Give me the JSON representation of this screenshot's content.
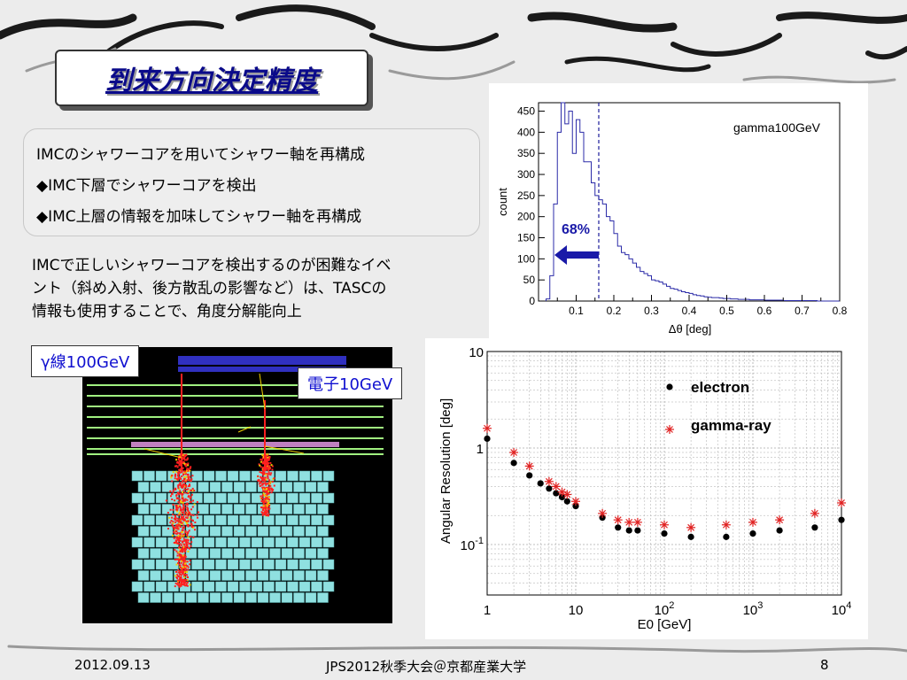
{
  "slide": {
    "title": "到来方向決定精度",
    "bullets": [
      "IMCのシャワーコアを用いてシャワー軸を再構成",
      "◆IMC下層でシャワーコアを検出",
      "◆IMC上層の情報を加味してシャワー軸を再構成"
    ],
    "paragraph": [
      "IMCで正しいシャワーコアを検出するのが困難なイベ",
      "ント（斜め入射、後方散乱の影響など）は、TASCの",
      "情報も使用することで、角度分解能向上"
    ],
    "labels": {
      "gamma": "γ線100GeV",
      "electron": "電子10GeV"
    },
    "footer": {
      "date": "2012.09.13",
      "conference": "JPS2012秋季大会＠京都産業大学",
      "page": "8"
    }
  },
  "chart_data": [
    {
      "type": "bar",
      "title": "gamma100GeV",
      "xlabel": "Δθ [deg]",
      "ylabel": "count",
      "xlim": [
        0,
        0.8
      ],
      "ylim": [
        0,
        470
      ],
      "x_ticks": [
        "0.1",
        "0.2",
        "0.3",
        "0.4",
        "0.5",
        "0.6",
        "0.7",
        "0.8"
      ],
      "x_tick_values": [
        0.1,
        0.2,
        0.3,
        0.4,
        0.5,
        0.6,
        0.7,
        0.8
      ],
      "y_ticks": [
        "0",
        "50",
        "100",
        "150",
        "200",
        "250",
        "300",
        "350",
        "400",
        "450"
      ],
      "y_tick_values": [
        0,
        50,
        100,
        150,
        200,
        250,
        300,
        350,
        400,
        450
      ],
      "bin_width": 0.01,
      "bin_start": 0.02,
      "values": [
        5,
        60,
        230,
        400,
        470,
        420,
        450,
        350,
        430,
        400,
        330,
        330,
        280,
        250,
        240,
        230,
        200,
        190,
        160,
        130,
        115,
        110,
        100,
        90,
        80,
        70,
        65,
        60,
        50,
        48,
        45,
        40,
        35,
        30,
        28,
        25,
        22,
        20,
        18,
        15,
        13,
        12,
        10,
        9,
        8,
        8,
        7,
        6,
        6,
        5,
        5,
        4,
        4,
        4,
        3,
        3,
        3,
        3,
        2,
        2,
        2,
        2,
        2,
        1,
        1,
        1,
        1,
        1,
        1,
        1,
        1,
        1,
        0,
        0,
        0,
        0,
        0,
        0
      ],
      "cut_line_x": 0.16,
      "annotation": "68%"
    },
    {
      "type": "scatter",
      "xlabel": "E0 [GeV]",
      "ylabel": "Angular Resolution [deg]",
      "x_scale": "log",
      "y_scale": "log",
      "xlim": [
        1,
        10000
      ],
      "ylim": [
        0.03,
        10
      ],
      "x_ticks": [
        "1",
        "10",
        "10",
        "10",
        "10"
      ],
      "x_tick_exponents": [
        "",
        "",
        "2",
        "3",
        "4"
      ],
      "x_tick_values": [
        1,
        10,
        100,
        1000,
        10000
      ],
      "y_ticks": [
        "10",
        "1",
        "10"
      ],
      "y_tick_exponents": [
        "",
        "",
        "-1"
      ],
      "y_tick_values": [
        10,
        1,
        0.1
      ],
      "grid": true,
      "legend_position": "top-right",
      "series": [
        {
          "name": "electron",
          "marker": "dot",
          "color": "#000000",
          "x": [
            1,
            2,
            3,
            4,
            5,
            6,
            7,
            8,
            10,
            20,
            30,
            40,
            50,
            100,
            200,
            500,
            1000,
            2000,
            5000,
            10000
          ],
          "y": [
            1.25,
            0.7,
            0.52,
            0.43,
            0.38,
            0.34,
            0.31,
            0.28,
            0.25,
            0.19,
            0.15,
            0.14,
            0.14,
            0.13,
            0.12,
            0.12,
            0.13,
            0.14,
            0.15,
            0.18
          ]
        },
        {
          "name": "gamma-ray",
          "marker": "star",
          "color": "#e02020",
          "x": [
            1,
            2,
            3,
            5,
            6,
            7,
            8,
            10,
            20,
            30,
            40,
            50,
            100,
            200,
            500,
            1000,
            2000,
            5000,
            10000
          ],
          "y": [
            1.6,
            0.9,
            0.65,
            0.45,
            0.4,
            0.35,
            0.33,
            0.28,
            0.21,
            0.18,
            0.17,
            0.17,
            0.16,
            0.15,
            0.16,
            0.17,
            0.18,
            0.21,
            0.27
          ]
        }
      ]
    }
  ],
  "event_display": {
    "colors": {
      "background": "#000000",
      "tasc": "#8fe0e0",
      "shower": "#ff2020",
      "imc": "#a0f080",
      "cover": "#3030c0"
    }
  }
}
